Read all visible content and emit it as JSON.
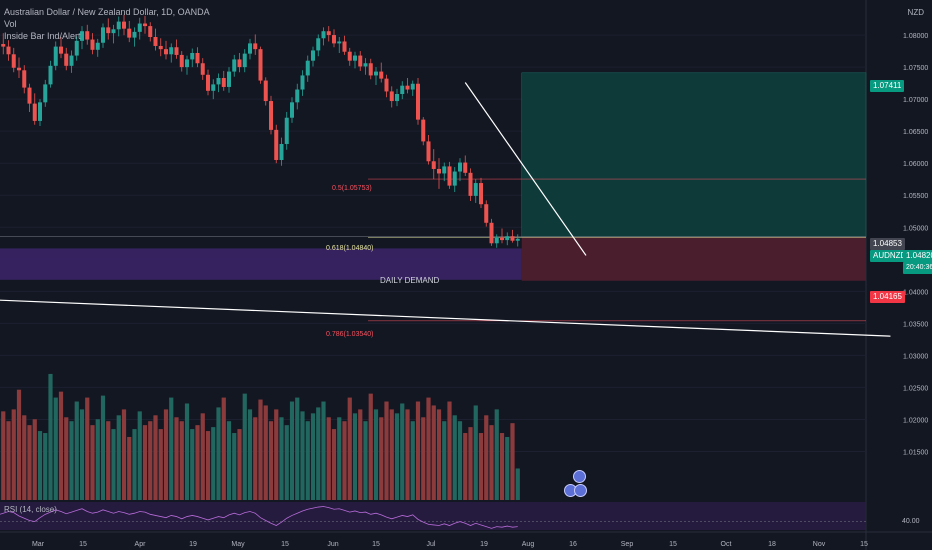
{
  "header": {
    "symbol_line": "Australian Dollar / New Zealand Dollar, 1D, OANDA",
    "indicator_1": "Vol",
    "indicator_2": "Inside Bar Ind/Alert",
    "currency": "NZD"
  },
  "zones": {
    "daily_demand_label": "DAILY DEMAND"
  },
  "fib_levels": [
    {
      "label": "0.5(1.05753)",
      "price": 1.05753,
      "color": "#f7525f"
    },
    {
      "label": "0.618(1.04840)",
      "price": 1.0484,
      "color": "#e6e6a0"
    },
    {
      "label": "0.786(1.03540)",
      "price": 1.0354,
      "color": "#f7525f"
    }
  ],
  "price_badges": {
    "target": "1.07411",
    "entry": "1.04853",
    "symbol": "AUDNZD",
    "last": "1.04820",
    "countdown": "20:40:36",
    "stop": "1.04165"
  },
  "rsi": {
    "label": "RSI (14, close)",
    "level_label": "40.00"
  },
  "chart_data": {
    "type": "candlestick",
    "title": "Australian Dollar / New Zealand Dollar, 1D, OANDA",
    "y_tick_labels": [
      "1.08000",
      "1.07500",
      "1.07000",
      "1.06500",
      "1.06000",
      "1.05500",
      "1.05000",
      "1.04500",
      "1.04000",
      "1.03500",
      "1.03000",
      "1.02500",
      "1.02000",
      "1.01500"
    ],
    "y_ticks": [
      1.08,
      1.075,
      1.07,
      1.065,
      1.06,
      1.055,
      1.05,
      1.045,
      1.04,
      1.035,
      1.03,
      1.025,
      1.02,
      1.015
    ],
    "ylim": [
      1.0118,
      1.0836
    ],
    "x_tick_labels": [
      "Mar",
      "15",
      "Apr",
      "19",
      "May",
      "15",
      "Jun",
      "15",
      "Jul",
      "19",
      "Aug",
      "16",
      "Sep",
      "15",
      "Oct",
      "18",
      "Nov",
      "15"
    ],
    "colors": {
      "up": "#26a69a",
      "down": "#ef5350"
    },
    "ohlc": [
      [
        1.0772,
        1.0797,
        1.0753,
        1.0786
      ],
      [
        1.0786,
        1.0803,
        1.077,
        1.0782
      ],
      [
        1.0782,
        1.0792,
        1.076,
        1.077
      ],
      [
        1.077,
        1.078,
        1.0742,
        1.0749
      ],
      [
        1.0749,
        1.0765,
        1.0733,
        1.0745
      ],
      [
        1.0745,
        1.0753,
        1.0709,
        1.0718
      ],
      [
        1.0718,
        1.0724,
        1.068,
        1.0693
      ],
      [
        1.0693,
        1.0709,
        1.066,
        1.0666
      ],
      [
        1.0666,
        1.07,
        1.0658,
        1.0695
      ],
      [
        1.0695,
        1.073,
        1.0688,
        1.0723
      ],
      [
        1.0723,
        1.076,
        1.0718,
        1.0752
      ],
      [
        1.0752,
        1.079,
        1.0745,
        1.0782
      ],
      [
        1.0782,
        1.0797,
        1.0764,
        1.0771
      ],
      [
        1.0771,
        1.078,
        1.0745,
        1.0752
      ],
      [
        1.0752,
        1.0776,
        1.0741,
        1.0768
      ],
      [
        1.0768,
        1.0798,
        1.076,
        1.0791
      ],
      [
        1.0791,
        1.0814,
        1.0778,
        1.0806
      ],
      [
        1.0806,
        1.0816,
        1.0785,
        1.0793
      ],
      [
        1.0793,
        1.0803,
        1.077,
        1.0777
      ],
      [
        1.0777,
        1.0794,
        1.0766,
        1.0788
      ],
      [
        1.0788,
        1.0818,
        1.078,
        1.0812
      ],
      [
        1.0812,
        1.0826,
        1.0793,
        1.0803
      ],
      [
        1.0803,
        1.0816,
        1.0787,
        1.0809
      ],
      [
        1.0809,
        1.0829,
        1.0798,
        1.0821
      ],
      [
        1.0821,
        1.0832,
        1.08,
        1.081
      ],
      [
        1.081,
        1.0822,
        1.0789,
        1.0796
      ],
      [
        1.0796,
        1.0812,
        1.0782,
        1.0805
      ],
      [
        1.0805,
        1.0827,
        1.0793,
        1.0818
      ],
      [
        1.0818,
        1.083,
        1.0802,
        1.0814
      ],
      [
        1.0814,
        1.082,
        1.079,
        1.0797
      ],
      [
        1.0797,
        1.081,
        1.0776,
        1.0783
      ],
      [
        1.0783,
        1.0795,
        1.0767,
        1.0778
      ],
      [
        1.0778,
        1.0791,
        1.0762,
        1.077
      ],
      [
        1.077,
        1.0787,
        1.0757,
        1.0781
      ],
      [
        1.0781,
        1.0793,
        1.0763,
        1.0769
      ],
      [
        1.0769,
        1.0775,
        1.0743,
        1.075
      ],
      [
        1.075,
        1.0768,
        1.0738,
        1.0762
      ],
      [
        1.0762,
        1.0779,
        1.075,
        1.0772
      ],
      [
        1.0772,
        1.0781,
        1.075,
        1.0756
      ],
      [
        1.0756,
        1.0764,
        1.073,
        1.0738
      ],
      [
        1.0738,
        1.0746,
        1.0706,
        1.0713
      ],
      [
        1.0713,
        1.0731,
        1.07,
        1.0723
      ],
      [
        1.0723,
        1.074,
        1.0711,
        1.0733
      ],
      [
        1.0733,
        1.0744,
        1.0713,
        1.0719
      ],
      [
        1.0719,
        1.075,
        1.071,
        1.0743
      ],
      [
        1.0743,
        1.0769,
        1.0735,
        1.0762
      ],
      [
        1.0762,
        1.0772,
        1.0742,
        1.075
      ],
      [
        1.075,
        1.0778,
        1.0742,
        1.0771
      ],
      [
        1.0771,
        1.0794,
        1.0762,
        1.0787
      ],
      [
        1.0787,
        1.0801,
        1.0769,
        1.0778
      ],
      [
        1.0778,
        1.0782,
        1.0724,
        1.0729
      ],
      [
        1.0729,
        1.0734,
        1.069,
        1.0697
      ],
      [
        1.0697,
        1.0705,
        1.0645,
        1.0652
      ],
      [
        1.0652,
        1.066,
        1.06,
        1.0605
      ],
      [
        1.0605,
        1.064,
        1.0596,
        1.063
      ],
      [
        1.063,
        1.068,
        1.0621,
        1.0671
      ],
      [
        1.0671,
        1.0703,
        1.0663,
        1.0695
      ],
      [
        1.0695,
        1.0724,
        1.0684,
        1.0715
      ],
      [
        1.0715,
        1.0745,
        1.0705,
        1.0737
      ],
      [
        1.0737,
        1.0768,
        1.0727,
        1.076
      ],
      [
        1.076,
        1.0782,
        1.0751,
        1.0776
      ],
      [
        1.0776,
        1.0801,
        1.0767,
        1.0795
      ],
      [
        1.0795,
        1.0812,
        1.0784,
        1.0806
      ],
      [
        1.0806,
        1.0814,
        1.079,
        1.08
      ],
      [
        1.08,
        1.0809,
        1.0781,
        1.0787
      ],
      [
        1.0787,
        1.0797,
        1.0772,
        1.079
      ],
      [
        1.079,
        1.0799,
        1.0769,
        1.0774
      ],
      [
        1.0774,
        1.078,
        1.0752,
        1.076
      ],
      [
        1.076,
        1.0774,
        1.0748,
        1.0768
      ],
      [
        1.0768,
        1.0775,
        1.0744,
        1.0751
      ],
      [
        1.0751,
        1.0764,
        1.0738,
        1.0756
      ],
      [
        1.0756,
        1.0763,
        1.0731,
        1.0737
      ],
      [
        1.0737,
        1.075,
        1.0722,
        1.0743
      ],
      [
        1.0743,
        1.0757,
        1.0726,
        1.0732
      ],
      [
        1.0732,
        1.0738,
        1.0703,
        1.0712
      ],
      [
        1.0712,
        1.072,
        1.0687,
        1.0697
      ],
      [
        1.0697,
        1.0716,
        1.0689,
        1.0708
      ],
      [
        1.0708,
        1.0728,
        1.07,
        1.0721
      ],
      [
        1.0721,
        1.0733,
        1.0709,
        1.0715
      ],
      [
        1.0715,
        1.0729,
        1.0705,
        1.0724
      ],
      [
        1.0724,
        1.0733,
        1.066,
        1.0668
      ],
      [
        1.0668,
        1.0672,
        1.0628,
        1.0634
      ],
      [
        1.0634,
        1.0644,
        1.0598,
        1.0603
      ],
      [
        1.0603,
        1.0622,
        1.0575,
        1.0591
      ],
      [
        1.0591,
        1.0608,
        1.056,
        1.0584
      ],
      [
        1.0584,
        1.0601,
        1.0572,
        1.0595
      ],
      [
        1.0595,
        1.0602,
        1.056,
        1.0565
      ],
      [
        1.0565,
        1.0594,
        1.0555,
        1.0587
      ],
      [
        1.0587,
        1.0608,
        1.0572,
        1.0601
      ],
      [
        1.0601,
        1.0612,
        1.058,
        1.0585
      ],
      [
        1.0585,
        1.0592,
        1.0541,
        1.0549
      ],
      [
        1.0549,
        1.0575,
        1.0538,
        1.0569
      ],
      [
        1.0569,
        1.0577,
        1.053,
        1.0536
      ],
      [
        1.0536,
        1.0542,
        1.0501,
        1.0507
      ],
      [
        1.0507,
        1.0513,
        1.0471,
        1.0475
      ],
      [
        1.0475,
        1.0489,
        1.0468,
        1.0484
      ],
      [
        1.0484,
        1.0498,
        1.0475,
        1.048
      ],
      [
        1.048,
        1.0492,
        1.0472,
        1.0486
      ],
      [
        1.0486,
        1.0496,
        1.0476,
        1.0479
      ],
      [
        1.0479,
        1.0489,
        1.047,
        1.0482
      ]
    ],
    "volume": [
      210,
      225,
      200,
      230,
      280,
      215,
      190,
      205,
      175,
      170,
      320,
      260,
      275,
      210,
      200,
      250,
      230,
      260,
      190,
      205,
      265,
      200,
      180,
      215,
      230,
      160,
      180,
      225,
      190,
      200,
      215,
      180,
      230,
      260,
      210,
      200,
      245,
      180,
      190,
      220,
      175,
      185,
      235,
      260,
      200,
      170,
      180,
      270,
      230,
      210,
      255,
      240,
      200,
      230,
      210,
      190,
      250,
      260,
      225,
      200,
      220,
      235,
      250,
      210,
      180,
      210,
      200,
      260,
      220,
      230,
      200,
      270,
      230,
      210,
      250,
      230,
      220,
      245,
      230,
      200,
      250,
      210,
      260,
      240,
      230,
      200,
      250,
      215,
      200,
      170,
      185,
      240,
      170,
      215,
      190,
      230,
      170,
      160,
      195,
      80
    ],
    "rsi_values": [
      52,
      55,
      58,
      56,
      50,
      46,
      42,
      40,
      47,
      53,
      57,
      61,
      58,
      54,
      57,
      60,
      63,
      58,
      55,
      57,
      61,
      58,
      55,
      58,
      56,
      53,
      55,
      58,
      57,
      53,
      51,
      49,
      47,
      51,
      49,
      45,
      49,
      51,
      49,
      46,
      43,
      46,
      49,
      47,
      52,
      55,
      52,
      56,
      58,
      55,
      47,
      42,
      37,
      33,
      39,
      46,
      51,
      55,
      59,
      62,
      64,
      66,
      67,
      65,
      62,
      63,
      60,
      57,
      59,
      56,
      57,
      53,
      55,
      52,
      48,
      45,
      48,
      51,
      49,
      52,
      44,
      39,
      35,
      34,
      33,
      36,
      33,
      37,
      40,
      37,
      33,
      37,
      34,
      31,
      28,
      31,
      30,
      32,
      30,
      31
    ],
    "rsi_ylim": [
      25,
      75
    ],
    "rsi_level": 40,
    "zones_prices": {
      "demand_top": 1.0467,
      "demand_bottom": 1.0418,
      "target": 1.07411,
      "entry": 1.04853,
      "stop": 1.04165
    },
    "trendlines": [
      {
        "from_index": 89,
        "from_price": 1.0726,
        "to_index": 112,
        "to_price": 1.0456,
        "color": "#ffffff"
      },
      {
        "from_index": -2,
        "from_price": 1.0387,
        "to_index": 170,
        "to_price": 1.033,
        "color": "#ffffff"
      }
    ]
  }
}
